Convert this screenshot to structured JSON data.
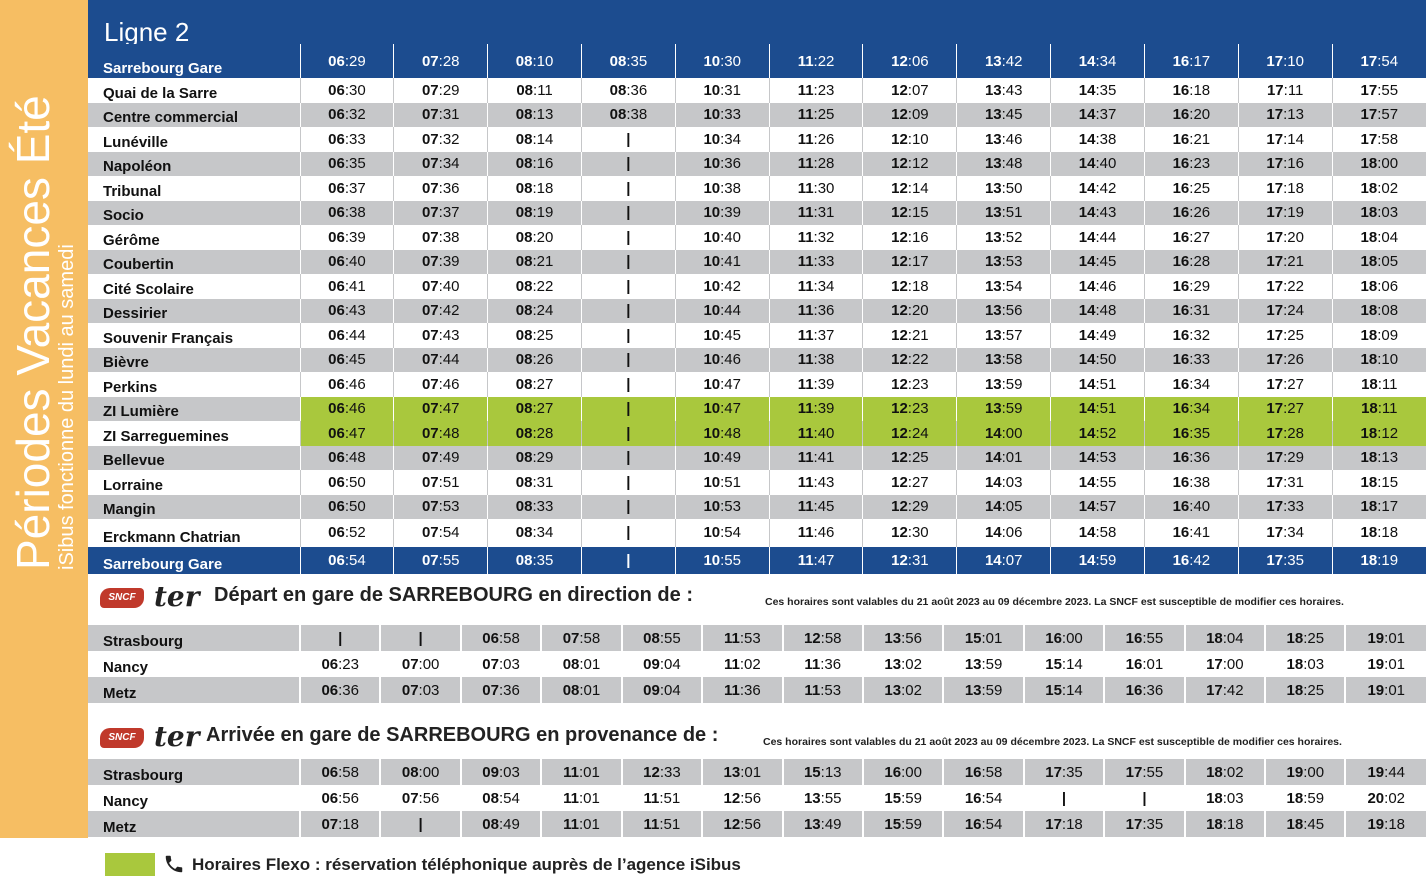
{
  "sidebar": {
    "title": "Périodes Vacances Été",
    "subtitle": "iSibus fonctionne du lundi au samedi"
  },
  "colors": {
    "blue": "#1c4c8f",
    "gray": "#c6c7c9",
    "green": "#a9c83d",
    "orange": "#f6be63",
    "red": "#c0392b"
  },
  "line_title": "Ligne 2",
  "main_table": {
    "rows": [
      {
        "stop": "Sarrebourg Gare",
        "style": "blue",
        "times": [
          "06:29",
          "07:28",
          "08:10",
          "08:35",
          "10:30",
          "11:22",
          "12:06",
          "13:42",
          "14:34",
          "16:17",
          "17:10",
          "17:54"
        ]
      },
      {
        "stop": "Quai de la Sarre",
        "style": "white",
        "times": [
          "06:30",
          "07:29",
          "08:11",
          "08:36",
          "10:31",
          "11:23",
          "12:07",
          "13:43",
          "14:35",
          "16:18",
          "17:11",
          "17:55"
        ]
      },
      {
        "stop": "Centre commercial",
        "style": "gray",
        "times": [
          "06:32",
          "07:31",
          "08:13",
          "08:38",
          "10:33",
          "11:25",
          "12:09",
          "13:45",
          "14:37",
          "16:20",
          "17:13",
          "17:57"
        ]
      },
      {
        "stop": "Lunéville",
        "style": "white",
        "times": [
          "06:33",
          "07:32",
          "08:14",
          "|",
          "10:34",
          "11:26",
          "12:10",
          "13:46",
          "14:38",
          "16:21",
          "17:14",
          "17:58"
        ]
      },
      {
        "stop": "Napoléon",
        "style": "gray",
        "times": [
          "06:35",
          "07:34",
          "08:16",
          "|",
          "10:36",
          "11:28",
          "12:12",
          "13:48",
          "14:40",
          "16:23",
          "17:16",
          "18:00"
        ]
      },
      {
        "stop": "Tribunal",
        "style": "white",
        "times": [
          "06:37",
          "07:36",
          "08:18",
          "|",
          "10:38",
          "11:30",
          "12:14",
          "13:50",
          "14:42",
          "16:25",
          "17:18",
          "18:02"
        ]
      },
      {
        "stop": "Socio",
        "style": "gray",
        "times": [
          "06:38",
          "07:37",
          "08:19",
          "|",
          "10:39",
          "11:31",
          "12:15",
          "13:51",
          "14:43",
          "16:26",
          "17:19",
          "18:03"
        ]
      },
      {
        "stop": "Gérôme",
        "style": "white",
        "times": [
          "06:39",
          "07:38",
          "08:20",
          "|",
          "10:40",
          "11:32",
          "12:16",
          "13:52",
          "14:44",
          "16:27",
          "17:20",
          "18:04"
        ]
      },
      {
        "stop": "Coubertin",
        "style": "gray",
        "times": [
          "06:40",
          "07:39",
          "08:21",
          "|",
          "10:41",
          "11:33",
          "12:17",
          "13:53",
          "14:45",
          "16:28",
          "17:21",
          "18:05"
        ]
      },
      {
        "stop": "Cité Scolaire",
        "style": "white",
        "times": [
          "06:41",
          "07:40",
          "08:22",
          "|",
          "10:42",
          "11:34",
          "12:18",
          "13:54",
          "14:46",
          "16:29",
          "17:22",
          "18:06"
        ]
      },
      {
        "stop": "Dessirier",
        "style": "gray",
        "times": [
          "06:43",
          "07:42",
          "08:24",
          "|",
          "10:44",
          "11:36",
          "12:20",
          "13:56",
          "14:48",
          "16:31",
          "17:24",
          "18:08"
        ]
      },
      {
        "stop": "Souvenir Français",
        "style": "white",
        "times": [
          "06:44",
          "07:43",
          "08:25",
          "|",
          "10:45",
          "11:37",
          "12:21",
          "13:57",
          "14:49",
          "16:32",
          "17:25",
          "18:09"
        ]
      },
      {
        "stop": "Bièvre",
        "style": "gray",
        "times": [
          "06:45",
          "07:44",
          "08:26",
          "|",
          "10:46",
          "11:38",
          "12:22",
          "13:58",
          "14:50",
          "16:33",
          "17:26",
          "18:10"
        ]
      },
      {
        "stop": "Perkins",
        "style": "white",
        "times": [
          "06:46",
          "07:46",
          "08:27",
          "|",
          "10:47",
          "11:39",
          "12:23",
          "13:59",
          "14:51",
          "16:34",
          "17:27",
          "18:11"
        ]
      },
      {
        "stop": "ZI Lumière",
        "style": "gray",
        "flexo": true,
        "times": [
          "06:46",
          "07:47",
          "08:27",
          "|",
          "10:47",
          "11:39",
          "12:23",
          "13:59",
          "14:51",
          "16:34",
          "17:27",
          "18:11"
        ]
      },
      {
        "stop": "ZI Sarreguemines",
        "style": "white",
        "flexo": true,
        "times": [
          "06:47",
          "07:48",
          "08:28",
          "|",
          "10:48",
          "11:40",
          "12:24",
          "14:00",
          "14:52",
          "16:35",
          "17:28",
          "18:12"
        ]
      },
      {
        "stop": "Bellevue",
        "style": "gray",
        "times": [
          "06:48",
          "07:49",
          "08:29",
          "|",
          "10:49",
          "11:41",
          "12:25",
          "14:01",
          "14:53",
          "16:36",
          "17:29",
          "18:13"
        ]
      },
      {
        "stop": "Lorraine",
        "style": "white",
        "times": [
          "06:50",
          "07:51",
          "08:31",
          "|",
          "10:51",
          "11:43",
          "12:27",
          "14:03",
          "14:55",
          "16:38",
          "17:31",
          "18:15"
        ]
      },
      {
        "stop": "Mangin",
        "style": "gray",
        "times": [
          "06:50",
          "07:53",
          "08:33",
          "|",
          "10:53",
          "11:45",
          "12:29",
          "14:05",
          "14:57",
          "16:40",
          "17:33",
          "18:17"
        ]
      },
      {
        "stop": "Erckmann Chatrian",
        "style": "white",
        "times": [
          "06:52",
          "07:54",
          "08:34",
          "|",
          "10:54",
          "11:46",
          "12:30",
          "14:06",
          "14:58",
          "16:41",
          "17:34",
          "18:18"
        ]
      },
      {
        "stop": "Sarrebourg Gare",
        "style": "blue",
        "times": [
          "06:54",
          "07:55",
          "08:35",
          "|",
          "10:55",
          "11:47",
          "12:31",
          "14:07",
          "14:59",
          "16:42",
          "17:35",
          "18:19"
        ]
      }
    ]
  },
  "sncf_departures": {
    "logo_text": "SNCF",
    "ter_text": "ter",
    "title": "Départ en gare de SARREBOURG en direction de :",
    "note": "Ces horaires sont valables du 21 août 2023 au 09 décembre 2023. La SNCF est susceptible de modifier ces horaires.",
    "rows": [
      {
        "city": "Strasbourg",
        "times": [
          "|",
          "|",
          "06:58",
          "07:58",
          "08:55",
          "11:53",
          "12:58",
          "13:56",
          "15:01",
          "16:00",
          "16:55",
          "18:04",
          "18:25",
          "19:01"
        ]
      },
      {
        "city": "Nancy",
        "times": [
          "06:23",
          "07:00",
          "07:03",
          "08:01",
          "09:04",
          "11:02",
          "11:36",
          "13:02",
          "13:59",
          "15:14",
          "16:01",
          "17:00",
          "18:03",
          "19:01"
        ]
      },
      {
        "city": "Metz",
        "times": [
          "06:36",
          "07:03",
          "07:36",
          "08:01",
          "09:04",
          "11:36",
          "11:53",
          "13:02",
          "13:59",
          "15:14",
          "16:36",
          "17:42",
          "18:25",
          "19:01"
        ]
      }
    ]
  },
  "sncf_arrivals": {
    "logo_text": "SNCF",
    "ter_text": "ter",
    "title": "Arrivée en gare de SARREBOURG en provenance de :",
    "note": "Ces horaires sont valables du 21 août 2023 au 09 décembre 2023. La SNCF est susceptible de modifier ces horaires.",
    "rows": [
      {
        "city": "Strasbourg",
        "times": [
          "06:58",
          "08:00",
          "09:03",
          "11:01",
          "12:33",
          "13:01",
          "15:13",
          "16:00",
          "16:58",
          "17:35",
          "17:55",
          "18:02",
          "19:00",
          "19:44"
        ]
      },
      {
        "city": "Nancy",
        "times": [
          "06:56",
          "07:56",
          "08:54",
          "11:01",
          "11:51",
          "12:56",
          "13:55",
          "15:59",
          "16:54",
          "|",
          "|",
          "18:03",
          "18:59",
          "20:02"
        ]
      },
      {
        "city": "Metz",
        "times": [
          "07:18",
          "|",
          "08:49",
          "11:01",
          "11:51",
          "12:56",
          "13:49",
          "15:59",
          "16:54",
          "17:18",
          "17:35",
          "18:18",
          "18:45",
          "19:18"
        ]
      }
    ]
  },
  "legend": {
    "text": "Horaires Flexo : réservation téléphonique auprès de l’agence iSibus",
    "icon": "phone-icon"
  }
}
